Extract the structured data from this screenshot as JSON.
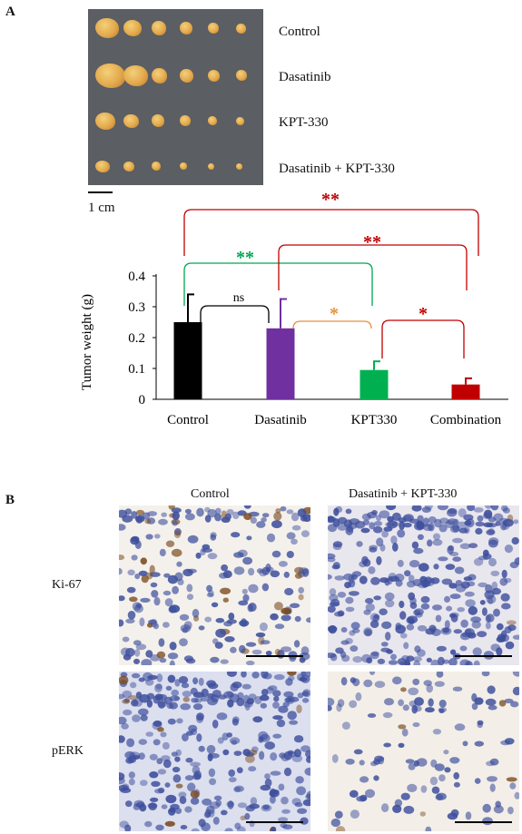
{
  "panel_a": {
    "letter": "A",
    "photo_rows": [
      "Control",
      "Dasatinib",
      "KPT-330",
      "Dasatinib + KPT-330"
    ],
    "scale_label": "1 cm",
    "photo_tumor_counts": [
      6,
      6,
      6,
      6
    ]
  },
  "chart_data": {
    "type": "bar",
    "categories": [
      "Control",
      "Dasatinib",
      "KPT330",
      "Combination"
    ],
    "values": [
      0.25,
      0.23,
      0.095,
      0.048
    ],
    "errors": [
      0.09,
      0.095,
      0.028,
      0.02
    ],
    "colors": [
      "#000000",
      "#7030a0",
      "#00b050",
      "#c00000"
    ],
    "ylabel": "Tumor  weight (g)",
    "xlabel": "",
    "ylim": [
      0,
      0.4
    ],
    "yticks": [
      0,
      0.1,
      0.2,
      0.3,
      0.4
    ],
    "ytick_labels": [
      "0",
      "0.1",
      "0.2",
      "0.3",
      "0.4"
    ],
    "significance": [
      {
        "from": 0,
        "to": 1,
        "label": "ns",
        "color": "#000000"
      },
      {
        "from": 1,
        "to": 2,
        "label": "*",
        "color": "#e69138"
      },
      {
        "from": 2,
        "to": 3,
        "label": "*",
        "color": "#c00000"
      },
      {
        "from": 0,
        "to": 2,
        "label": "**",
        "color": "#00a650"
      },
      {
        "from": 1,
        "to": 3,
        "label": "**",
        "color": "#c00000"
      },
      {
        "from": 0,
        "to": 3,
        "label": "**",
        "color": "#c00000"
      }
    ]
  },
  "panel_b": {
    "letter": "B",
    "col_labels": [
      "Control",
      "Dasatinib + KPT-330"
    ],
    "row_labels": [
      "Ki-67",
      "pERK"
    ],
    "stain_colors": {
      "nuclei": "#3d4e9c",
      "positive": "#7a4a1e",
      "background": "#f1eee9"
    }
  }
}
